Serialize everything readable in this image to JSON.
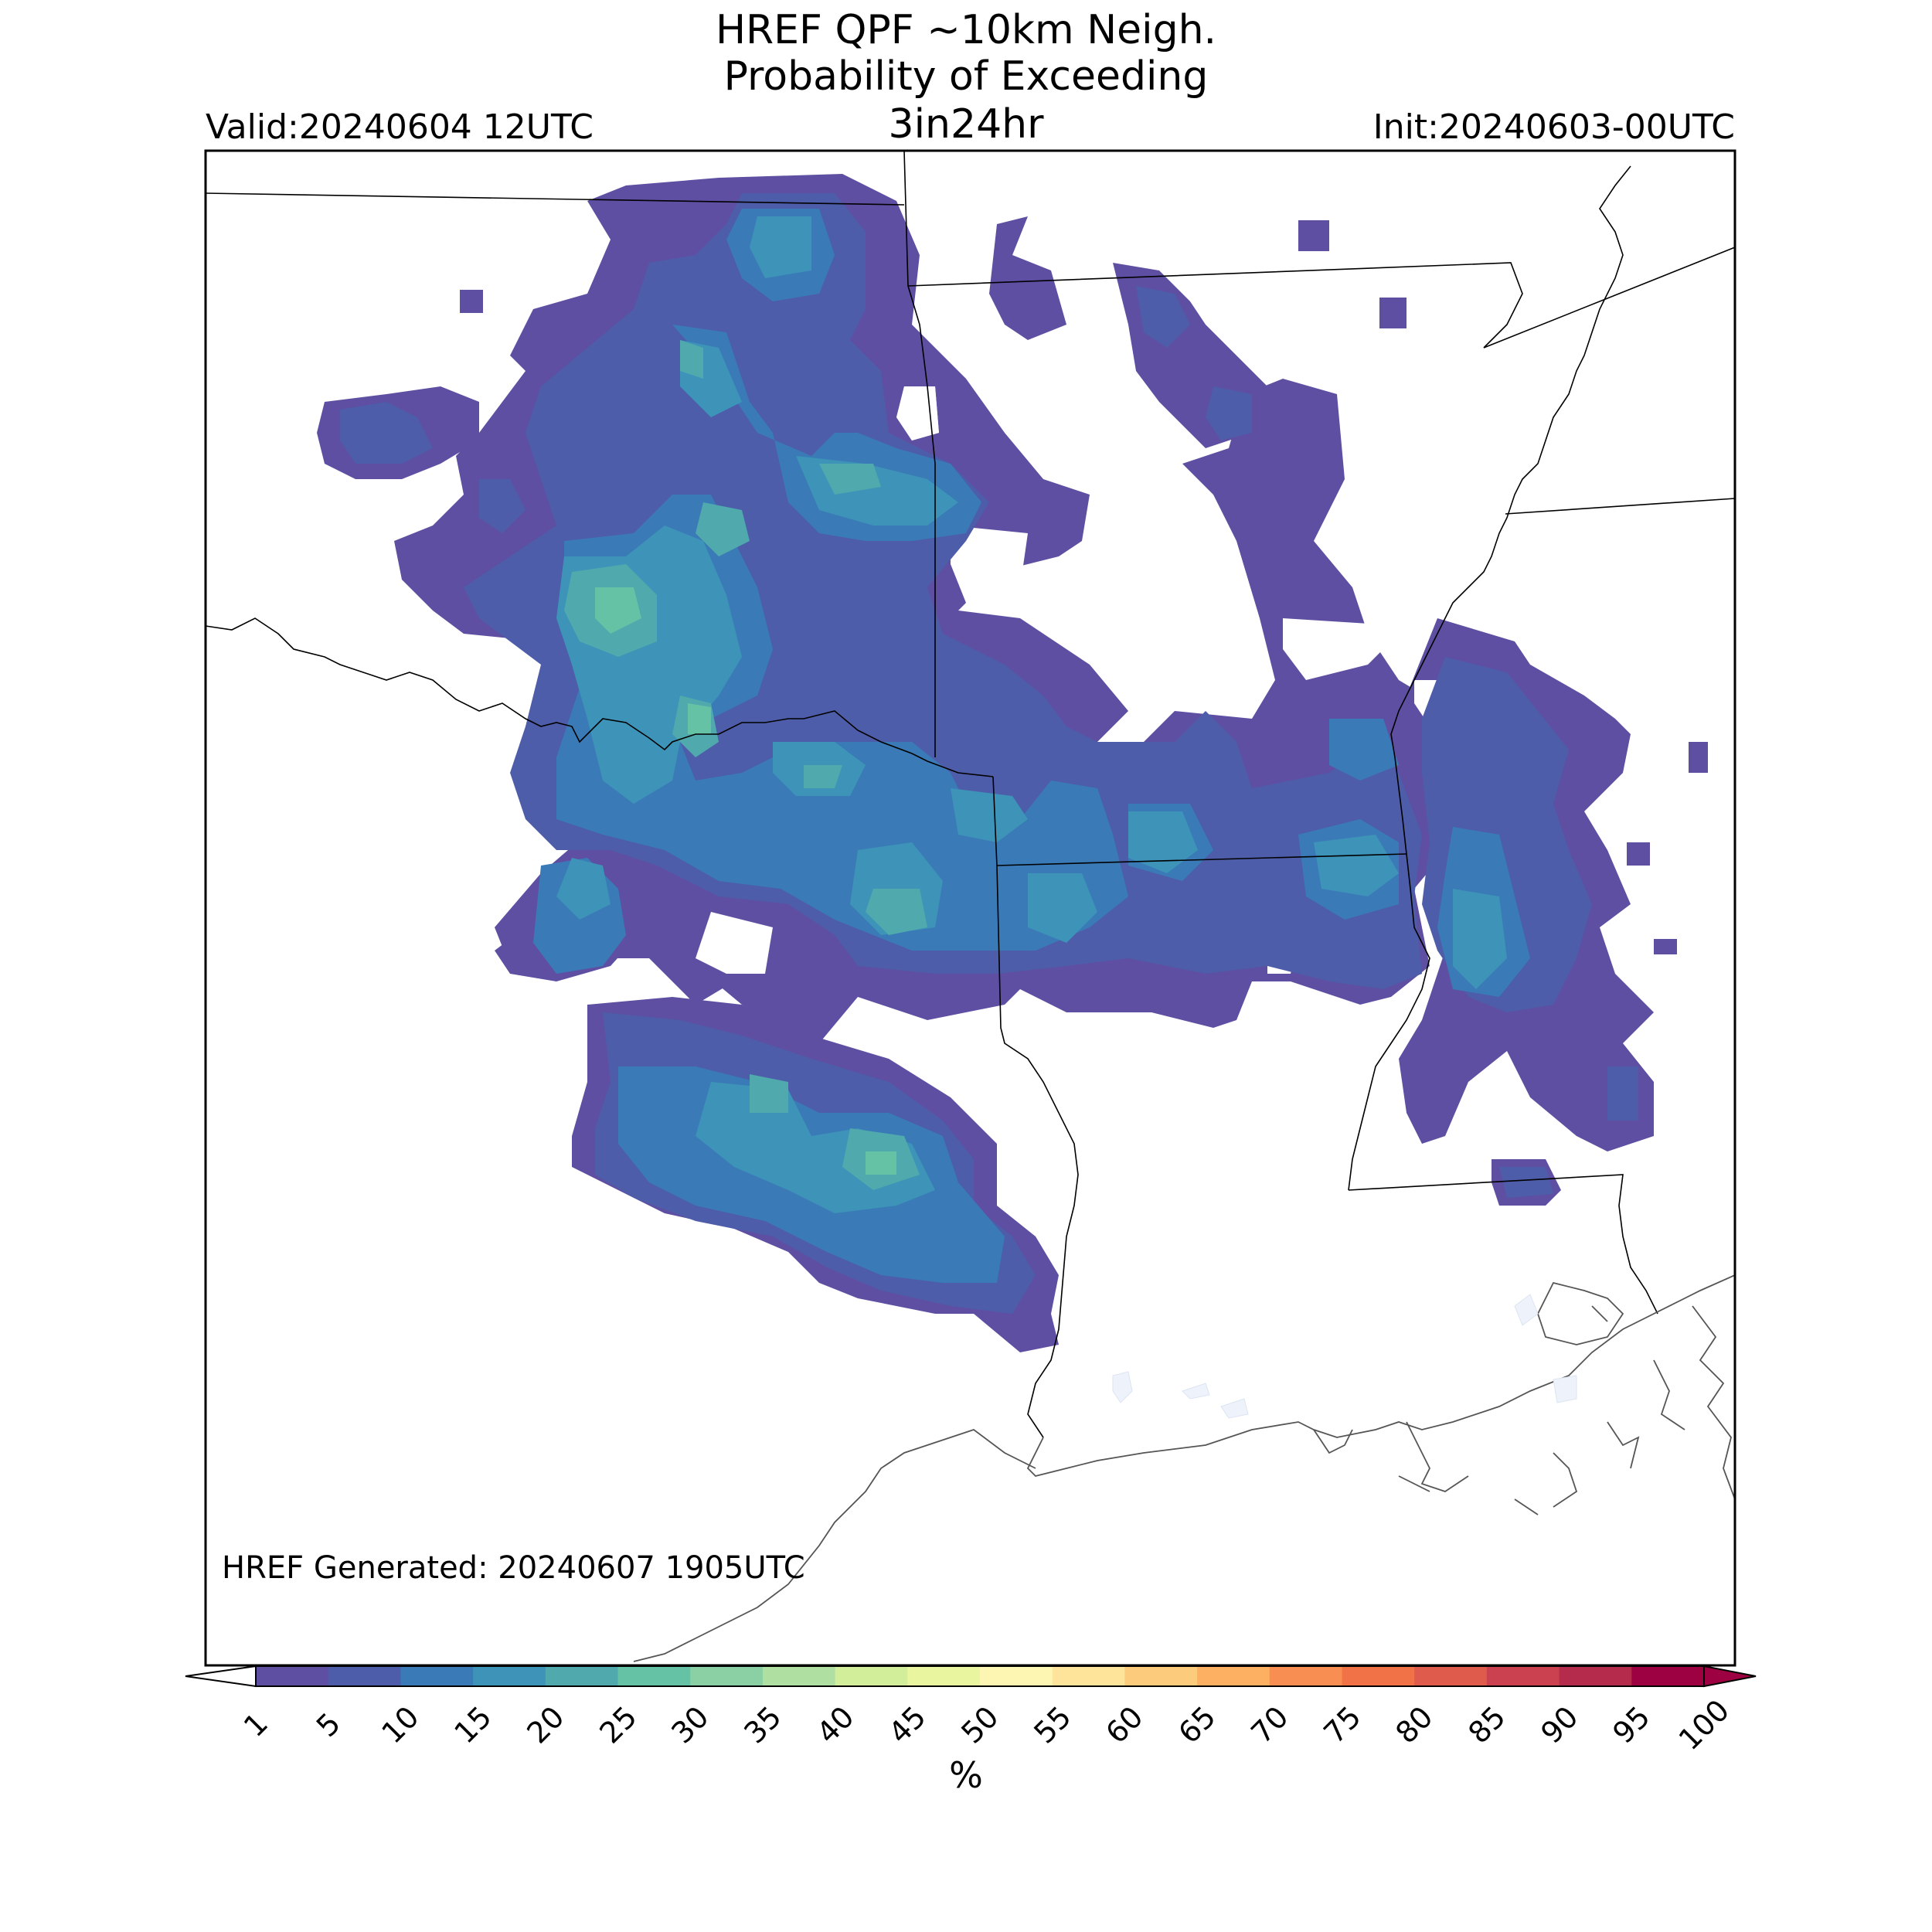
{
  "title": {
    "line1": "HREF QPF ~10km Neigh.",
    "line2": "Probability of Exceeding",
    "line3": "3in24hr"
  },
  "valid": "Valid:20240604 12UTC",
  "init": "Init:20240603-00UTC",
  "generated": "HREF Generated: 20240607 1905UTC",
  "colorbar": {
    "unit": "%",
    "ticks": [
      "1",
      "5",
      "10",
      "15",
      "20",
      "25",
      "30",
      "35",
      "40",
      "45",
      "50",
      "55",
      "60",
      "65",
      "70",
      "75",
      "80",
      "85",
      "90",
      "95",
      "100"
    ],
    "colors": [
      "#5e4fa2",
      "#4d5da9",
      "#3a7bb7",
      "#3d93b8",
      "#4fa9ad",
      "#66c2a5",
      "#8ad0a4",
      "#b0dfa2",
      "#d3ee9b",
      "#e9f59f",
      "#fdf6b2",
      "#fee49a",
      "#fdcb7c",
      "#fdb062",
      "#f98e52",
      "#f07246",
      "#df5b4b",
      "#cb4150",
      "#b52b4b",
      "#9e0142"
    ],
    "under_color": "#ffffff",
    "over_color": "#9e0142"
  },
  "map_colors": {
    "p1": "#5e4fa2",
    "p5": "#4d5da9",
    "p10": "#3a7bb7",
    "p15": "#3d93b8",
    "p20": "#4fa9ad",
    "p25": "#66c2a5"
  }
}
